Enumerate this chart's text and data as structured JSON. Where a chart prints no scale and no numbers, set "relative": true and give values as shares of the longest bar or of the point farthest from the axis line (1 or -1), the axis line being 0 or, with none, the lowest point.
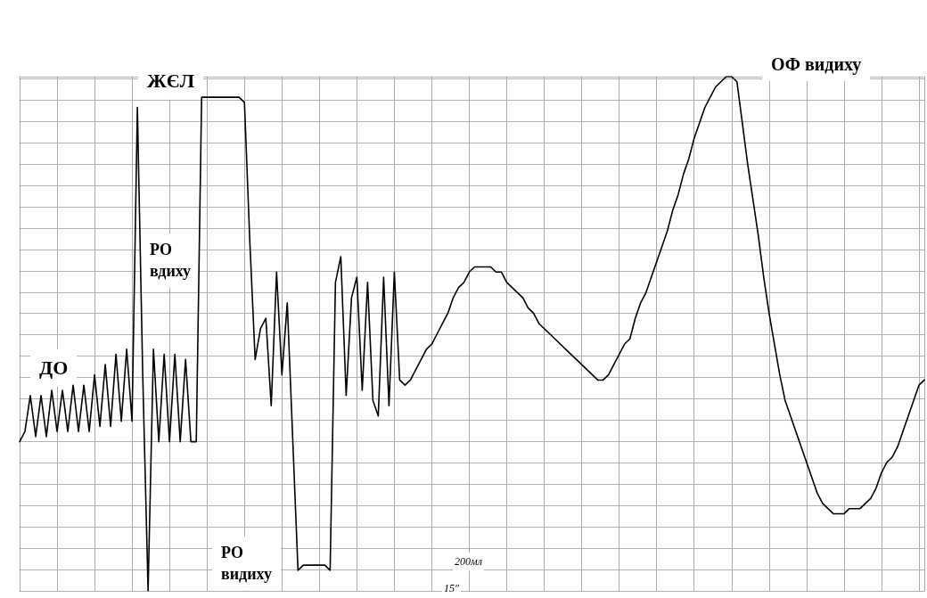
{
  "chart_data": {
    "type": "line",
    "relative": true,
    "grid": true,
    "categories": [
      null,
      null,
      null,
      null,
      null,
      null,
      null,
      null,
      null,
      null,
      null,
      null,
      null,
      null,
      null,
      null,
      null,
      null,
      null,
      null,
      null,
      null,
      null,
      null,
      null,
      null,
      null,
      null,
      null,
      null,
      null,
      null,
      null,
      null,
      null,
      null,
      null,
      null,
      null,
      null,
      null,
      null,
      null,
      null,
      null,
      null,
      null,
      null,
      null,
      null,
      null,
      null,
      null,
      null,
      null,
      null,
      null,
      null,
      null,
      null,
      null,
      null,
      null,
      null,
      null,
      null,
      null,
      null,
      null,
      null,
      null,
      null,
      null,
      null,
      null,
      null,
      null,
      null,
      null,
      null,
      null,
      null,
      null,
      null,
      null,
      null,
      null,
      null,
      null,
      null,
      null,
      null,
      null,
      null,
      null,
      null,
      null,
      null,
      null,
      null,
      null,
      null,
      null,
      null,
      null,
      null,
      null,
      null,
      null,
      null,
      null,
      null,
      null,
      null,
      null,
      null,
      null,
      null,
      null,
      null,
      null,
      null,
      null,
      null,
      null,
      null,
      null,
      null,
      null,
      null,
      null,
      null,
      null,
      null,
      null,
      null,
      null,
      null,
      null,
      null,
      null,
      null,
      null,
      null,
      null,
      null,
      null,
      null,
      null,
      null,
      null,
      null,
      null,
      null,
      null,
      null,
      null,
      null,
      null,
      null,
      null,
      null,
      null,
      null,
      null,
      null,
      null,
      null,
      null,
      null
    ],
    "series": [
      {
        "color": "#000000",
        "values": [
          0.29,
          0.31,
          0.38,
          0.3,
          0.38,
          0.3,
          0.39,
          0.31,
          0.39,
          0.31,
          0.4,
          0.31,
          0.4,
          0.31,
          0.42,
          0.32,
          0.44,
          0.32,
          0.46,
          0.33,
          0.47,
          0.33,
          0.94,
          0.42,
          0,
          0.47,
          0.29,
          0.46,
          0.29,
          0.46,
          0.29,
          0.45,
          0.29,
          0.29,
          0.96,
          0.96,
          0.96,
          0.96,
          0.96,
          0.96,
          0.96,
          0.96,
          0.95,
          0.68,
          0.45,
          0.51,
          0.53,
          0.36,
          0.62,
          0.42,
          0.56,
          0.3,
          0.04,
          0.05,
          0.05,
          0.05,
          0.05,
          0.05,
          0.04,
          0.6,
          0.65,
          0.38,
          0.57,
          0.61,
          0.39,
          0.6,
          0.37,
          0.34,
          0.61,
          0.36,
          0.62,
          0.41,
          0.4,
          0.41,
          0.43,
          0.45,
          0.47,
          0.48,
          0.5,
          0.52,
          0.54,
          0.57,
          0.59,
          0.6,
          0.62,
          0.63,
          0.63,
          0.63,
          0.63,
          0.62,
          0.62,
          0.6,
          0.59,
          0.58,
          0.57,
          0.55,
          0.54,
          0.52,
          0.51,
          0.5,
          0.49,
          0.48,
          0.47,
          0.46,
          0.45,
          0.44,
          0.43,
          0.42,
          0.41,
          0.41,
          0.42,
          0.44,
          0.46,
          0.48,
          0.49,
          0.53,
          0.56,
          0.58,
          0.61,
          0.64,
          0.67,
          0.7,
          0.74,
          0.77,
          0.81,
          0.84,
          0.88,
          0.91,
          0.94,
          0.96,
          0.98,
          0.99,
          1,
          1,
          0.99,
          0.91,
          0.83,
          0.76,
          0.69,
          0.61,
          0.54,
          0.48,
          0.42,
          0.37,
          0.34,
          0.31,
          0.28,
          0.25,
          0.22,
          0.19,
          0.17,
          0.16,
          0.15,
          0.15,
          0.15,
          0.16,
          0.16,
          0.16,
          0.17,
          0.18,
          0.2,
          0.23,
          0.25,
          0.26,
          0.28,
          0.31,
          0.34,
          0.37,
          0.4,
          0.41
        ]
      }
    ],
    "annotations": [
      "ЖЄЛ",
      "РО\nвдиху",
      "ДО",
      "РО\nвидиху",
      "ОФ видиху",
      "200мл",
      "15″"
    ]
  }
}
